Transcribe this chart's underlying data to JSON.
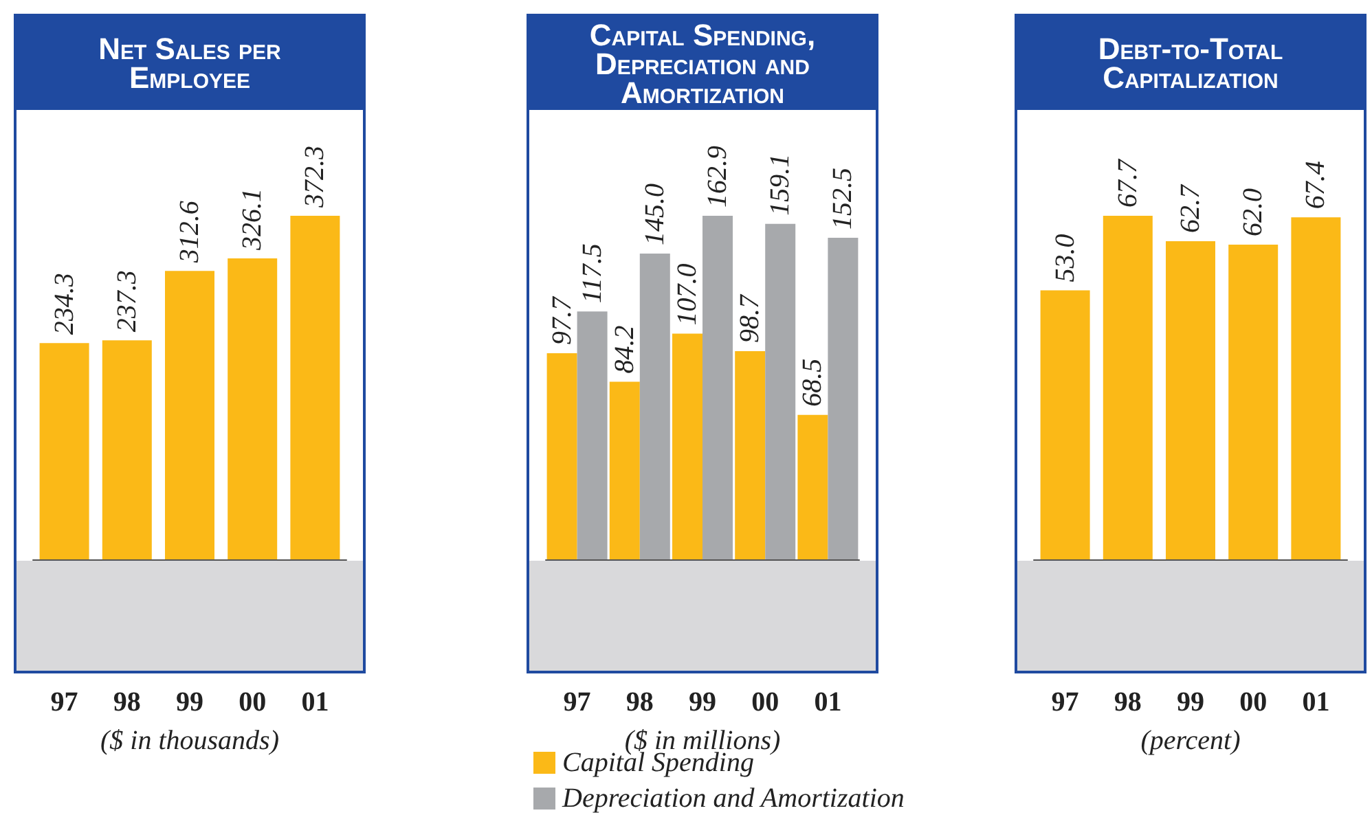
{
  "chart_data": [
    {
      "type": "bar",
      "title": "Net Sales per Employee",
      "xlabel": "($ in thousands)",
      "categories": [
        "97",
        "98",
        "99",
        "00",
        "01"
      ],
      "values": [
        234.3,
        237.3,
        312.6,
        326.1,
        372.3
      ],
      "value_labels": [
        "234.3",
        "237.3",
        "312.6",
        "326.1",
        "372.3"
      ],
      "color": "#fbb917"
    },
    {
      "type": "bar",
      "title": "Capital Spending, Depreciation and Amortization",
      "xlabel": "($ in millions)",
      "categories": [
        "97",
        "98",
        "99",
        "00",
        "01"
      ],
      "series": [
        {
          "name": "Capital Spending",
          "color": "#fbb917",
          "values": [
            97.7,
            84.2,
            107.0,
            98.7,
            68.5
          ],
          "value_labels": [
            "97.7",
            "84.2",
            "107.0",
            "98.7",
            "68.5"
          ]
        },
        {
          "name": "Depreciation and Amortization",
          "color": "#a7a9ac",
          "values": [
            117.5,
            145.0,
            162.9,
            159.1,
            152.5
          ],
          "value_labels": [
            "117.5",
            "145.0",
            "162.9",
            "159.1",
            "152.5"
          ]
        }
      ],
      "legend": "bottom"
    },
    {
      "type": "bar",
      "title": "Debt-to-Total Capitalization",
      "xlabel": "(percent)",
      "categories": [
        "97",
        "98",
        "99",
        "00",
        "01"
      ],
      "values": [
        53.0,
        67.7,
        62.7,
        62.0,
        67.4
      ],
      "value_labels": [
        "53.0",
        "67.7",
        "62.7",
        "62.0",
        "67.4"
      ],
      "color": "#fbb917"
    }
  ]
}
